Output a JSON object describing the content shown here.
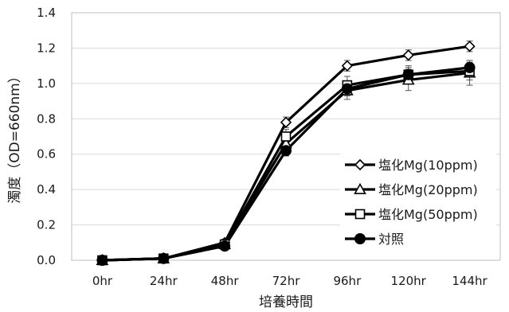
{
  "chart_data": {
    "type": "line",
    "title": "",
    "xlabel": "培養時間",
    "ylabel": "濁度（OD=660nm）",
    "categories": [
      "0hr",
      "24hr",
      "48hr",
      "72hr",
      "96hr",
      "120hr",
      "144hr"
    ],
    "ylim": [
      0,
      1.4
    ],
    "y_ticks": [
      "0.0",
      "0.2",
      "0.4",
      "0.6",
      "0.8",
      "1.0",
      "1.2",
      "1.4"
    ],
    "grid": true,
    "legend_position": "lower-right",
    "series": [
      {
        "name": "塩化Mg(10ppm)",
        "marker": "diamond-open",
        "values": [
          0.0,
          0.01,
          0.1,
          0.78,
          1.1,
          1.16,
          1.21
        ],
        "errors": [
          0.0,
          0.01,
          0.02,
          0.03,
          0.03,
          0.03,
          0.03
        ]
      },
      {
        "name": "塩化Mg(20ppm)",
        "marker": "triangle-open",
        "values": [
          0.0,
          0.01,
          0.09,
          0.66,
          0.96,
          1.02,
          1.06
        ],
        "errors": [
          0.0,
          0.01,
          0.02,
          0.04,
          0.05,
          0.06,
          0.07
        ]
      },
      {
        "name": "塩化Mg(50ppm)",
        "marker": "square-open",
        "values": [
          0.0,
          0.01,
          0.09,
          0.7,
          0.99,
          1.05,
          1.07
        ],
        "errors": [
          0.0,
          0.01,
          0.02,
          0.04,
          0.05,
          0.05,
          0.05
        ]
      },
      {
        "name": "対照",
        "marker": "circle-filled",
        "values": [
          0.0,
          0.01,
          0.08,
          0.62,
          0.97,
          1.05,
          1.09
        ],
        "errors": [
          0.0,
          0.01,
          0.02,
          0.03,
          0.04,
          0.04,
          0.04
        ]
      }
    ]
  }
}
